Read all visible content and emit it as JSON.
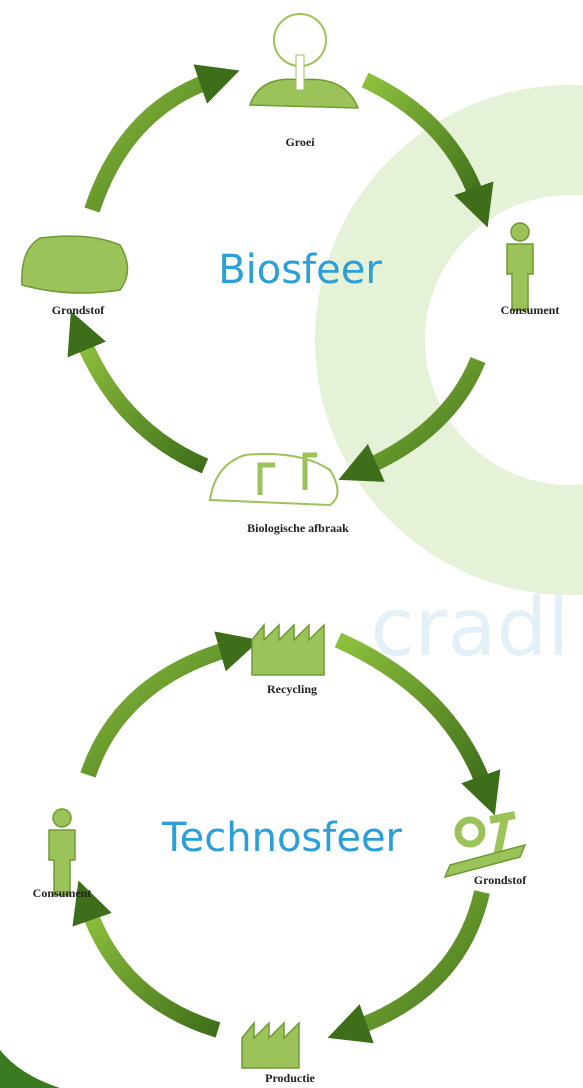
{
  "watermark": "cradl",
  "cycles": [
    {
      "title": "Biosfeer",
      "nodes": [
        {
          "label": "Groei"
        },
        {
          "label": "Consument"
        },
        {
          "label": "Biologische afbraak"
        },
        {
          "label": "Grondstof"
        }
      ]
    },
    {
      "title": "Technosfeer",
      "nodes": [
        {
          "label": "Recycling"
        },
        {
          "label": "Grondstof"
        },
        {
          "label": "Productie"
        },
        {
          "label": "Consument"
        }
      ]
    }
  ]
}
